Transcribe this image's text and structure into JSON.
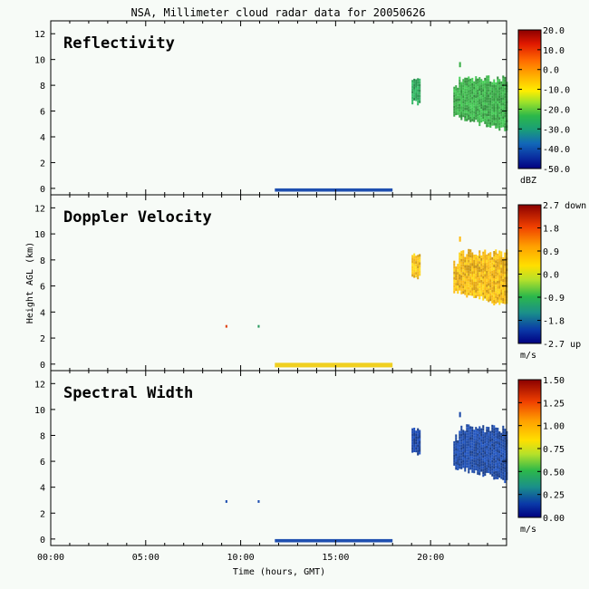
{
  "title": "NSA, Millimeter cloud radar data for 20050626",
  "xlabel": "Time (hours, GMT)",
  "ylabel": "Height AGL (km)",
  "chart_data": [
    {
      "type": "heatmap",
      "title": "Reflectivity",
      "ylim": [
        -0.5,
        13
      ],
      "xlim": [
        0,
        24
      ],
      "yticks": [
        "0",
        "2",
        "4",
        "6",
        "8",
        "10",
        "12"
      ],
      "colorbar": {
        "unit": "dBZ",
        "range": [
          -50,
          20
        ],
        "ticks": [
          "20.0",
          "10.0",
          "0.0",
          "-10.0",
          "-20.0",
          "-30.0",
          "-40.0",
          "-50.0"
        ]
      },
      "regions": [
        {
          "kind": "cloud",
          "x": [
            19.0,
            19.4
          ],
          "y": [
            6.6,
            8.6
          ],
          "color": "#2da55a"
        },
        {
          "kind": "cloud",
          "x": [
            21.2,
            24.0
          ],
          "y": [
            4.4,
            9.0
          ],
          "color": "#3cb04a"
        },
        {
          "kind": "speck",
          "x": [
            21.5,
            21.6
          ],
          "y": [
            9.4,
            9.8
          ],
          "color": "#3cb04a"
        },
        {
          "kind": "ground",
          "x": [
            11.8,
            18.0
          ],
          "y": [
            -0.25,
            0.0
          ],
          "color": "#1f4fb0"
        }
      ]
    },
    {
      "type": "heatmap",
      "title": "Doppler Velocity",
      "ylim": [
        -0.5,
        13
      ],
      "xlim": [
        0,
        24
      ],
      "yticks": [
        "0",
        "2",
        "4",
        "6",
        "8",
        "10",
        "12"
      ],
      "colorbar": {
        "unit": "m/s",
        "range": [
          -2.7,
          2.7
        ],
        "ticks": [
          "2.7 down",
          "1.8",
          "0.9",
          "0.0",
          "-0.9",
          "-1.8",
          "-2.7 up"
        ]
      },
      "regions": [
        {
          "kind": "cloud",
          "x": [
            19.0,
            19.4
          ],
          "y": [
            6.6,
            8.6
          ],
          "color": "#ffc01a"
        },
        {
          "kind": "cloud",
          "x": [
            21.2,
            24.0
          ],
          "y": [
            4.4,
            9.0
          ],
          "color": "#ffbb15"
        },
        {
          "kind": "speck",
          "x": [
            21.5,
            21.6
          ],
          "y": [
            9.4,
            9.8
          ],
          "color": "#ffbb15"
        },
        {
          "kind": "ground",
          "x": [
            11.8,
            18.0
          ],
          "y": [
            -0.25,
            0.1
          ],
          "color": "#f0d020"
        },
        {
          "kind": "speck",
          "x": [
            9.2,
            9.3
          ],
          "y": [
            2.8,
            3.0
          ],
          "color": "#e04010"
        },
        {
          "kind": "speck",
          "x": [
            10.9,
            11.0
          ],
          "y": [
            2.8,
            3.0
          ],
          "color": "#2a9a60"
        }
      ]
    },
    {
      "type": "heatmap",
      "title": "Spectral Width",
      "ylim": [
        -0.5,
        13
      ],
      "xlim": [
        0,
        24
      ],
      "yticks": [
        "0",
        "2",
        "4",
        "6",
        "8",
        "10",
        "12"
      ],
      "xticks": [
        "00:00",
        "05:00",
        "10:00",
        "15:00",
        "20:00"
      ],
      "colorbar": {
        "unit": "m/s",
        "range": [
          0,
          1.5
        ],
        "ticks": [
          "1.50",
          "1.25",
          "1.00",
          "0.75",
          "0.50",
          "0.25",
          "0.00"
        ]
      },
      "regions": [
        {
          "kind": "cloud",
          "x": [
            19.0,
            19.4
          ],
          "y": [
            6.6,
            8.6
          ],
          "color": "#1a45a8"
        },
        {
          "kind": "cloud",
          "x": [
            21.2,
            24.0
          ],
          "y": [
            4.4,
            9.0
          ],
          "color": "#1d4aa8"
        },
        {
          "kind": "speck",
          "x": [
            21.5,
            21.6
          ],
          "y": [
            9.4,
            9.8
          ],
          "color": "#1d4aa8"
        },
        {
          "kind": "ground",
          "x": [
            11.8,
            18.0
          ],
          "y": [
            -0.25,
            0.0
          ],
          "color": "#1f4fb0"
        },
        {
          "kind": "speck",
          "x": [
            9.2,
            9.3
          ],
          "y": [
            2.8,
            3.0
          ],
          "color": "#1f4fb0"
        },
        {
          "kind": "speck",
          "x": [
            10.9,
            11.0
          ],
          "y": [
            2.8,
            3.0
          ],
          "color": "#1f4fb0"
        }
      ]
    }
  ]
}
